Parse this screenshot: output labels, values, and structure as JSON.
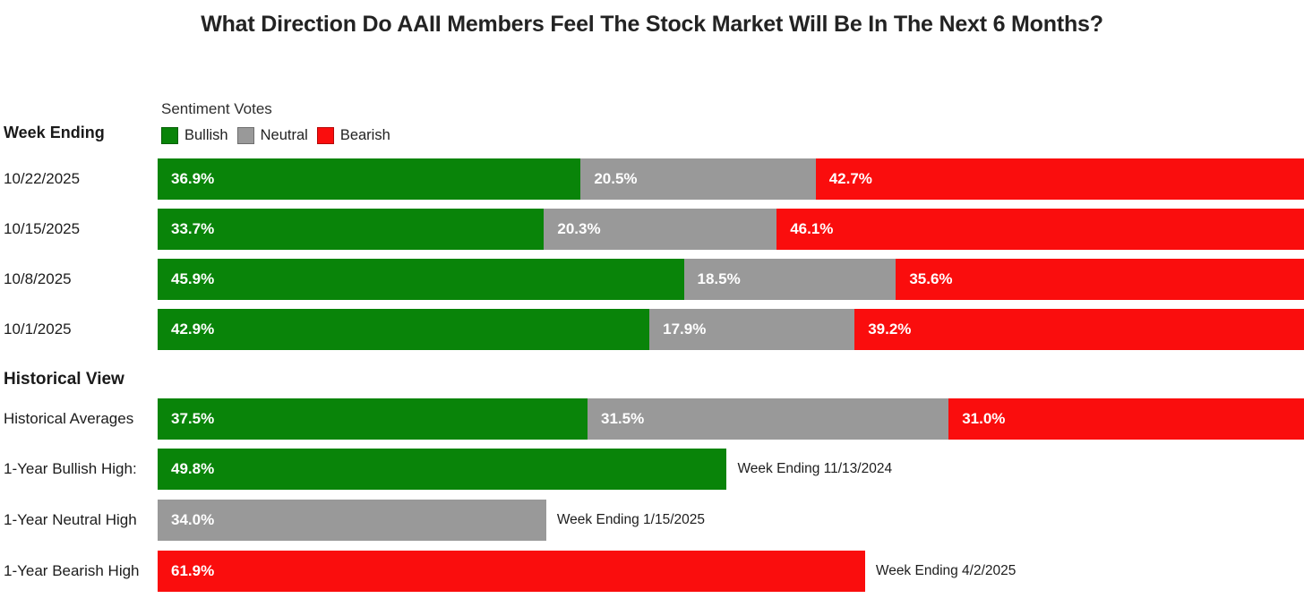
{
  "page_title": "What Direction Do AAII Members Feel The Stock Market Will Be In The Next 6 Months?",
  "colors": {
    "bullish": "#098409",
    "neutral": "#999999",
    "bearish": "#fa0d0d"
  },
  "chart_data": {
    "type": "bar",
    "orientation": "horizontal-stacked",
    "title": "What Direction Do AAII Members Feel The Stock Market Will Be In The Next 6 Months?",
    "legend_title": "Sentiment Votes",
    "legend": [
      {
        "label": "Bullish",
        "color_key": "bullish"
      },
      {
        "label": "Neutral",
        "color_key": "neutral"
      },
      {
        "label": "Bearish",
        "color_key": "bearish"
      }
    ],
    "row_axis_header": "Week Ending",
    "x_range_percent": [
      0,
      100
    ],
    "value_unit": "%",
    "weekly": {
      "categories": [
        "10/22/2025",
        "10/15/2025",
        "10/8/2025",
        "10/1/2025"
      ],
      "series": [
        {
          "name": "Bullish",
          "color_key": "bullish",
          "values": [
            36.9,
            33.7,
            45.9,
            42.9
          ]
        },
        {
          "name": "Neutral",
          "color_key": "neutral",
          "values": [
            20.5,
            20.3,
            18.5,
            17.9
          ]
        },
        {
          "name": "Bearish",
          "color_key": "bearish",
          "values": [
            42.7,
            46.1,
            35.6,
            39.2
          ]
        }
      ]
    },
    "historical_section_header": "Historical View",
    "historical_averages": {
      "label": "Historical Averages",
      "values": {
        "bullish": 37.5,
        "neutral": 31.5,
        "bearish": 31.0
      }
    },
    "historical_highs": [
      {
        "label": "1-Year Bullish High:",
        "color_key": "bullish",
        "value": 49.8,
        "annotation": "Week Ending 11/13/2024"
      },
      {
        "label": "1-Year Neutral High",
        "color_key": "neutral",
        "value": 34.0,
        "annotation": "Week Ending 1/15/2025"
      },
      {
        "label": "1-Year Bearish High",
        "color_key": "bearish",
        "value": 61.9,
        "annotation": "Week Ending 4/2/2025"
      }
    ]
  }
}
